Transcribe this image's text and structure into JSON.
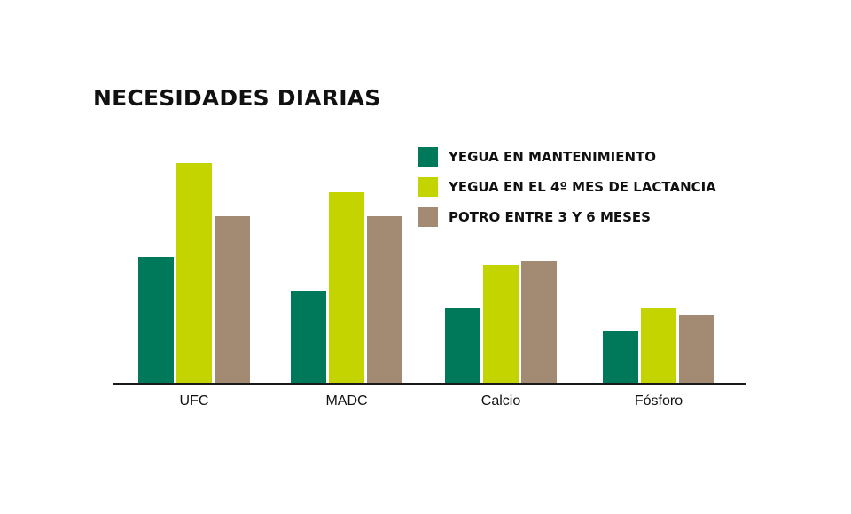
{
  "chart_data": {
    "type": "bar",
    "title": "NECESIDADES DIARIAS",
    "xlabel": "",
    "ylabel": "",
    "categories": [
      "UFC",
      "MADC",
      "Calcio",
      "Fósforo"
    ],
    "series": [
      {
        "name": "YEGUA EN MANTENIMIENTO",
        "color": "#00785a",
        "values": [
          142,
          104,
          84,
          58
        ]
      },
      {
        "name": "YEGUA EN EL 4º MES DE LACTANCIA",
        "color": "#c4d400",
        "values": [
          248,
          215,
          133,
          84
        ]
      },
      {
        "name": "POTRO ENTRE 3 Y 6 MESES",
        "color": "#a38a72",
        "values": [
          188,
          188,
          137,
          77
        ]
      }
    ],
    "ylim": [
      0,
      260
    ],
    "grid": false,
    "legend_position": "top-right",
    "axis_color": "#1a1a1a"
  }
}
